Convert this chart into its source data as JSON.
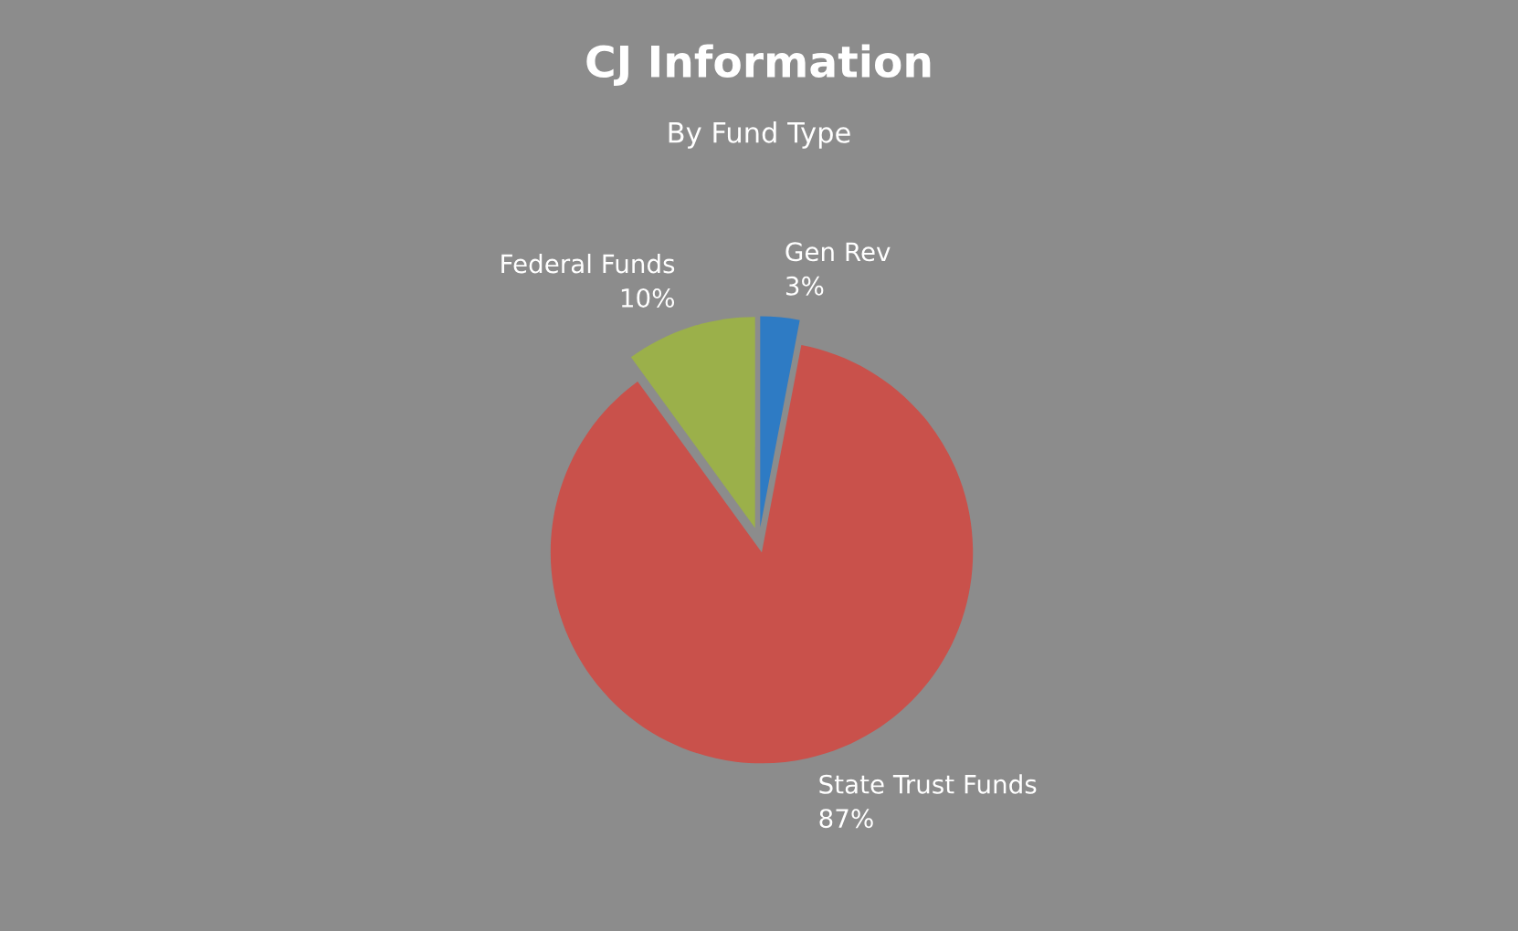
{
  "chart_data": {
    "type": "pie",
    "title": "CJ Information",
    "subtitle": "By Fund Type",
    "categories": [
      "Gen Rev",
      "State Trust Funds",
      "Federal Funds"
    ],
    "values": [
      3,
      87,
      10
    ],
    "value_labels": [
      "3%",
      "87%",
      "10%"
    ],
    "colors": [
      "#2e7bc4",
      "#c9514b",
      "#9bb04a"
    ],
    "legend": false
  }
}
